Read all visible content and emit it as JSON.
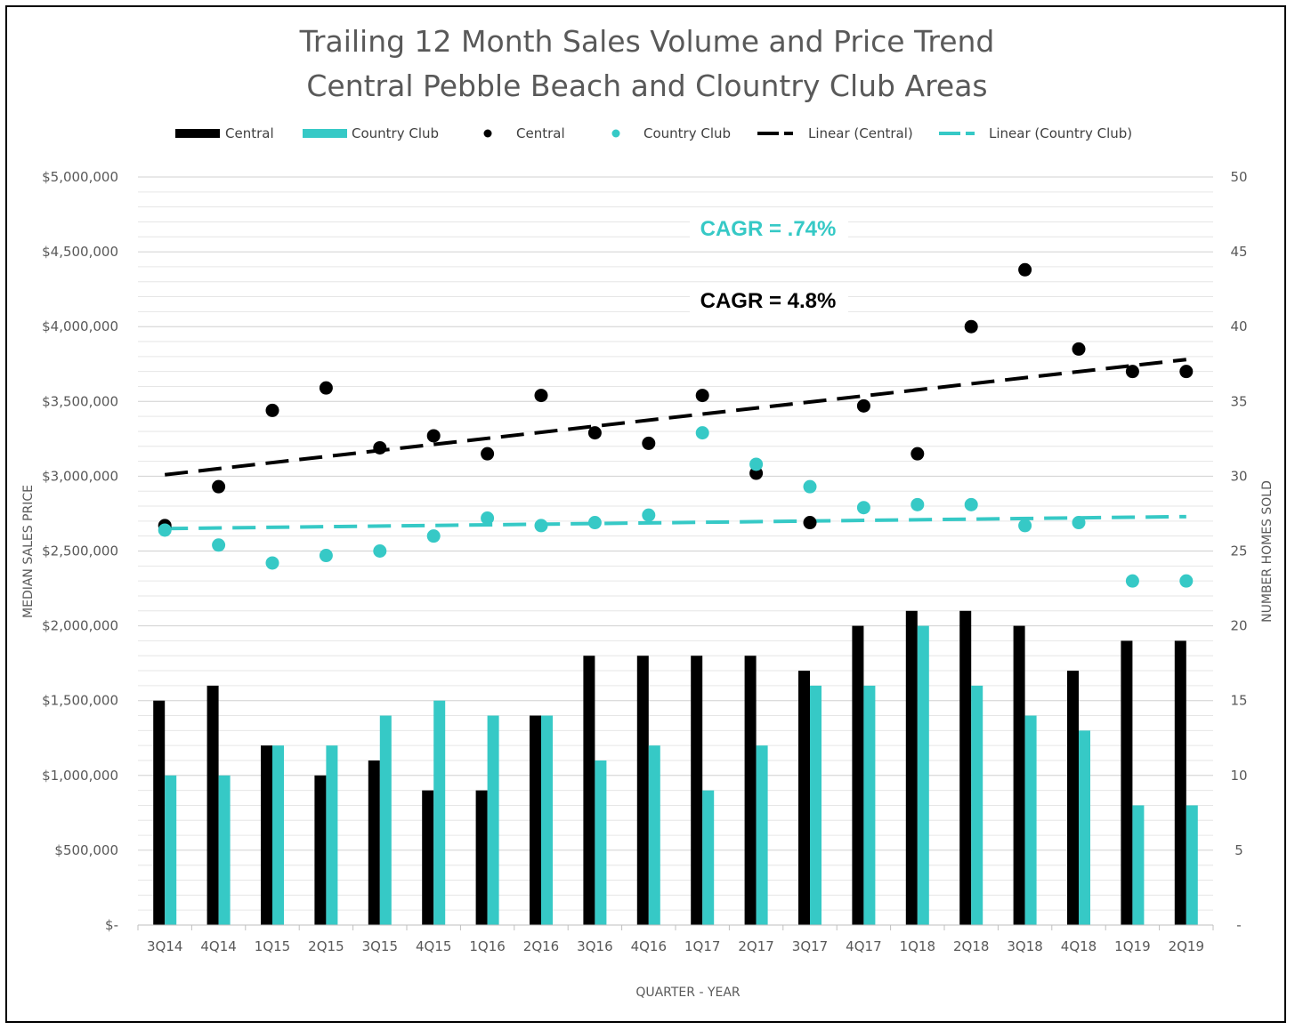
{
  "chart_data": {
    "type": "bar",
    "title": [
      "Trailing 12 Month Sales Volume and Price Trend",
      "Central Pebble Beach and Clountry Club Areas"
    ],
    "xlabel": "QUARTER - YEAR",
    "ylabel_left": "MEDIAN SALES PRICE",
    "ylabel_right": "NUMBER HOMES SOLD",
    "ylim_left": [
      0,
      5000000
    ],
    "ylim_right": [
      0,
      50
    ],
    "yticks_left": [
      "$-",
      "$500,000",
      "$1,000,000",
      "$1,500,000",
      "$2,000,000",
      "$2,500,000",
      "$3,000,000",
      "$3,500,000",
      "$4,000,000",
      "$4,500,000",
      "$5,000,000"
    ],
    "yticks_right": [
      "-",
      "5",
      "10",
      "15",
      "20",
      "25",
      "30",
      "35",
      "40",
      "45",
      "50"
    ],
    "categories": [
      "3Q14",
      "4Q14",
      "1Q15",
      "2Q15",
      "3Q15",
      "4Q15",
      "1Q16",
      "2Q16",
      "3Q16",
      "4Q16",
      "1Q17",
      "2Q17",
      "3Q17",
      "4Q17",
      "1Q18",
      "2Q18",
      "3Q18",
      "4Q18",
      "1Q19",
      "2Q19"
    ],
    "bar_series": [
      {
        "name": "Central",
        "axis": "right",
        "color": "#000000",
        "values": [
          15,
          16,
          12,
          10,
          11,
          9,
          9,
          14,
          18,
          18,
          18,
          18,
          17,
          20,
          21,
          21,
          20,
          17,
          19,
          19
        ]
      },
      {
        "name": "Country Club",
        "axis": "right",
        "color": "#36C9C6",
        "values": [
          10,
          10,
          12,
          12,
          14,
          15,
          14,
          14,
          11,
          12,
          9,
          12,
          16,
          16,
          20,
          16,
          14,
          13,
          8,
          8
        ]
      }
    ],
    "scatter_series": [
      {
        "name": "Central",
        "axis": "left",
        "color": "#000000",
        "values": [
          2670000,
          2930000,
          3440000,
          3590000,
          3190000,
          3270000,
          3150000,
          3540000,
          3290000,
          3220000,
          3540000,
          3020000,
          2690000,
          3470000,
          3150000,
          4000000,
          4380000,
          3850000,
          3700000,
          3700000
        ]
      },
      {
        "name": "Country Club",
        "axis": "left",
        "color": "#36C9C6",
        "values": [
          2640000,
          2540000,
          2420000,
          2470000,
          2500000,
          2600000,
          2720000,
          2670000,
          2690000,
          2740000,
          3290000,
          3080000,
          2930000,
          2790000,
          2810000,
          2810000,
          2670000,
          2690000,
          2300000,
          2300000
        ]
      }
    ],
    "trendlines": [
      {
        "name": "Linear (Central)",
        "axis": "left",
        "color": "#000000",
        "start": 3010000,
        "end": 3780000
      },
      {
        "name": "Linear (Country Club)",
        "axis": "left",
        "color": "#36C9C6",
        "start": 2650000,
        "end": 2730000
      }
    ],
    "legend": {
      "placement": "top",
      "entries": [
        {
          "label": "Central",
          "kind": "bar",
          "color": "#000000"
        },
        {
          "label": "Country Club",
          "kind": "bar",
          "color": "#36C9C6"
        },
        {
          "label": "Central",
          "kind": "marker",
          "color": "#000000"
        },
        {
          "label": "Country Club",
          "kind": "marker",
          "color": "#36C9C6"
        },
        {
          "label": "Linear (Central)",
          "kind": "dash",
          "color": "#000000"
        },
        {
          "label": "Linear (Country Club)",
          "kind": "dash",
          "color": "#36C9C6"
        }
      ]
    },
    "annotations": [
      {
        "text": "CAGR = .74%",
        "color": "#36C9C6"
      },
      {
        "text": "CAGR = 4.8%",
        "color": "#000000"
      }
    ],
    "grid": true
  }
}
